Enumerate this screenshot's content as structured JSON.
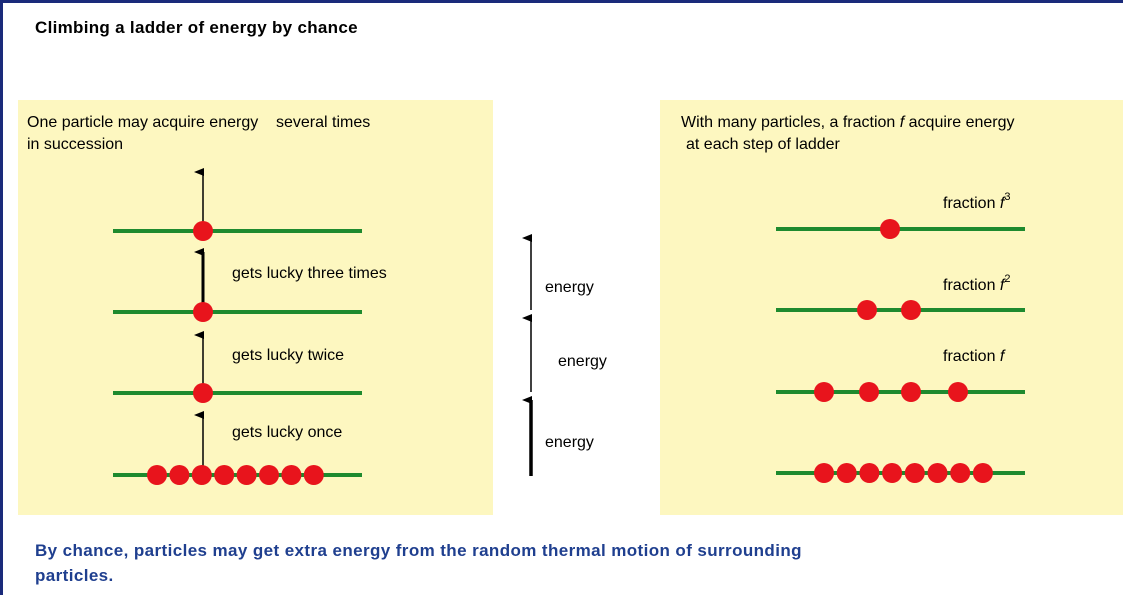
{
  "title": "Climbing a ladder of energy by chance",
  "left_panel": {
    "line1": "One particle may acquire energy    several times",
    "line2": "in succession",
    "steps": [
      "gets lucky three times",
      "gets lucky twice",
      "gets lucky once"
    ]
  },
  "middle": {
    "labels": [
      "energy",
      "energy",
      "energy"
    ]
  },
  "right_panel": {
    "line1": [
      "With many particles, a fraction ",
      "f",
      " acquire energy"
    ],
    "line2": "at each step of ladder",
    "levels": [
      {
        "label": "fraction ",
        "var": "f",
        "exp": "3"
      },
      {
        "label": "fraction ",
        "var": "f",
        "exp": "2"
      },
      {
        "label": "fraction ",
        "var": "f"
      }
    ]
  },
  "footer": {
    "line1": "By chance, particles may get extra energy from the random thermal motion of surrounding",
    "line2": "particles."
  }
}
